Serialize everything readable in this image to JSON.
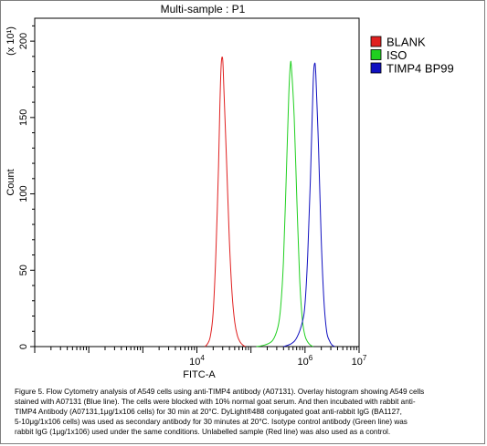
{
  "chart_data": {
    "type": "line",
    "title": "Multi-sample : P1",
    "xlabel": "FITC-A",
    "ylabel": "Count",
    "y_scale_note": "(x 10¹)",
    "x_scale": "log",
    "xlim": [
      10,
      10000000
    ],
    "ylim": [
      0,
      215
    ],
    "x_ticks": [
      {
        "value": 10000,
        "base": "10",
        "exp": "4"
      },
      {
        "value": 1000000,
        "base": "10",
        "exp": "6"
      },
      {
        "value": 10000000,
        "base": "10",
        "exp": "7"
      }
    ],
    "y_ticks": [
      0,
      50,
      100,
      150,
      200
    ],
    "legend_position": "top-right",
    "series": [
      {
        "name": "BLANK",
        "color": "#e02020",
        "points": [
          [
            14125,
            0
          ],
          [
            15849,
            2
          ],
          [
            17783,
            7
          ],
          [
            19953,
            22
          ],
          [
            22387,
            60
          ],
          [
            25119,
            118
          ],
          [
            26607,
            158
          ],
          [
            28184,
            185
          ],
          [
            30000,
            188
          ],
          [
            31623,
            168
          ],
          [
            35481,
            120
          ],
          [
            39811,
            70
          ],
          [
            44668,
            35
          ],
          [
            50119,
            16
          ],
          [
            56234,
            7
          ],
          [
            63096,
            3
          ],
          [
            70795,
            1
          ],
          [
            79433,
            0
          ]
        ]
      },
      {
        "name": "ISO",
        "color": "#20d020",
        "points": [
          [
            125893,
            0
          ],
          [
            177828,
            1
          ],
          [
            251189,
            4
          ],
          [
            316228,
            13
          ],
          [
            354813,
            26
          ],
          [
            398107,
            55
          ],
          [
            446684,
            108
          ],
          [
            501187,
            165
          ],
          [
            537032,
            185
          ],
          [
            562341,
            182
          ],
          [
            630957,
            150
          ],
          [
            707946,
            95
          ],
          [
            794328,
            45
          ],
          [
            891251,
            18
          ],
          [
            1000000,
            7
          ],
          [
            1122018,
            3
          ],
          [
            1258925,
            1
          ],
          [
            1412538,
            0
          ]
        ]
      },
      {
        "name": "TIMP4 BP99",
        "color": "#1010c0",
        "points": [
          [
            398107,
            0
          ],
          [
            562341,
            2
          ],
          [
            707946,
            6
          ],
          [
            891251,
            16
          ],
          [
            1000000,
            28
          ],
          [
            1122018,
            60
          ],
          [
            1258925,
            110
          ],
          [
            1412538,
            172
          ],
          [
            1496236,
            185
          ],
          [
            1584893,
            178
          ],
          [
            1778279,
            130
          ],
          [
            1995262,
            70
          ],
          [
            2238721,
            30
          ],
          [
            2511886,
            10
          ],
          [
            2818383,
            4
          ],
          [
            3162278,
            1
          ],
          [
            3548134,
            0
          ]
        ]
      }
    ]
  },
  "caption": {
    "lines": [
      "Figure 5. Flow Cytometry analysis of A549 cells using anti-TIMP4 antibody (A07131).  Overlay histogram showing A549 cells",
      "stained with A07131 (Blue line). The cells were blocked with 10% normal goat serum. And then incubated with rabbit anti-",
      "TIMP4 Antibody (A07131,1μg/1x106 cells) for 30 min at 20°C. DyLight®488 conjugated goat anti-rabbit IgG (BA1127,",
      "5-10μg/1x106 cells) was used as secondary antibody for 30 minutes at 20°C. Isotype control antibody (Green line) was",
      "rabbit IgG (1μg/1x106) used under the same conditions. Unlabelled sample (Red line) was also used as a control."
    ]
  }
}
